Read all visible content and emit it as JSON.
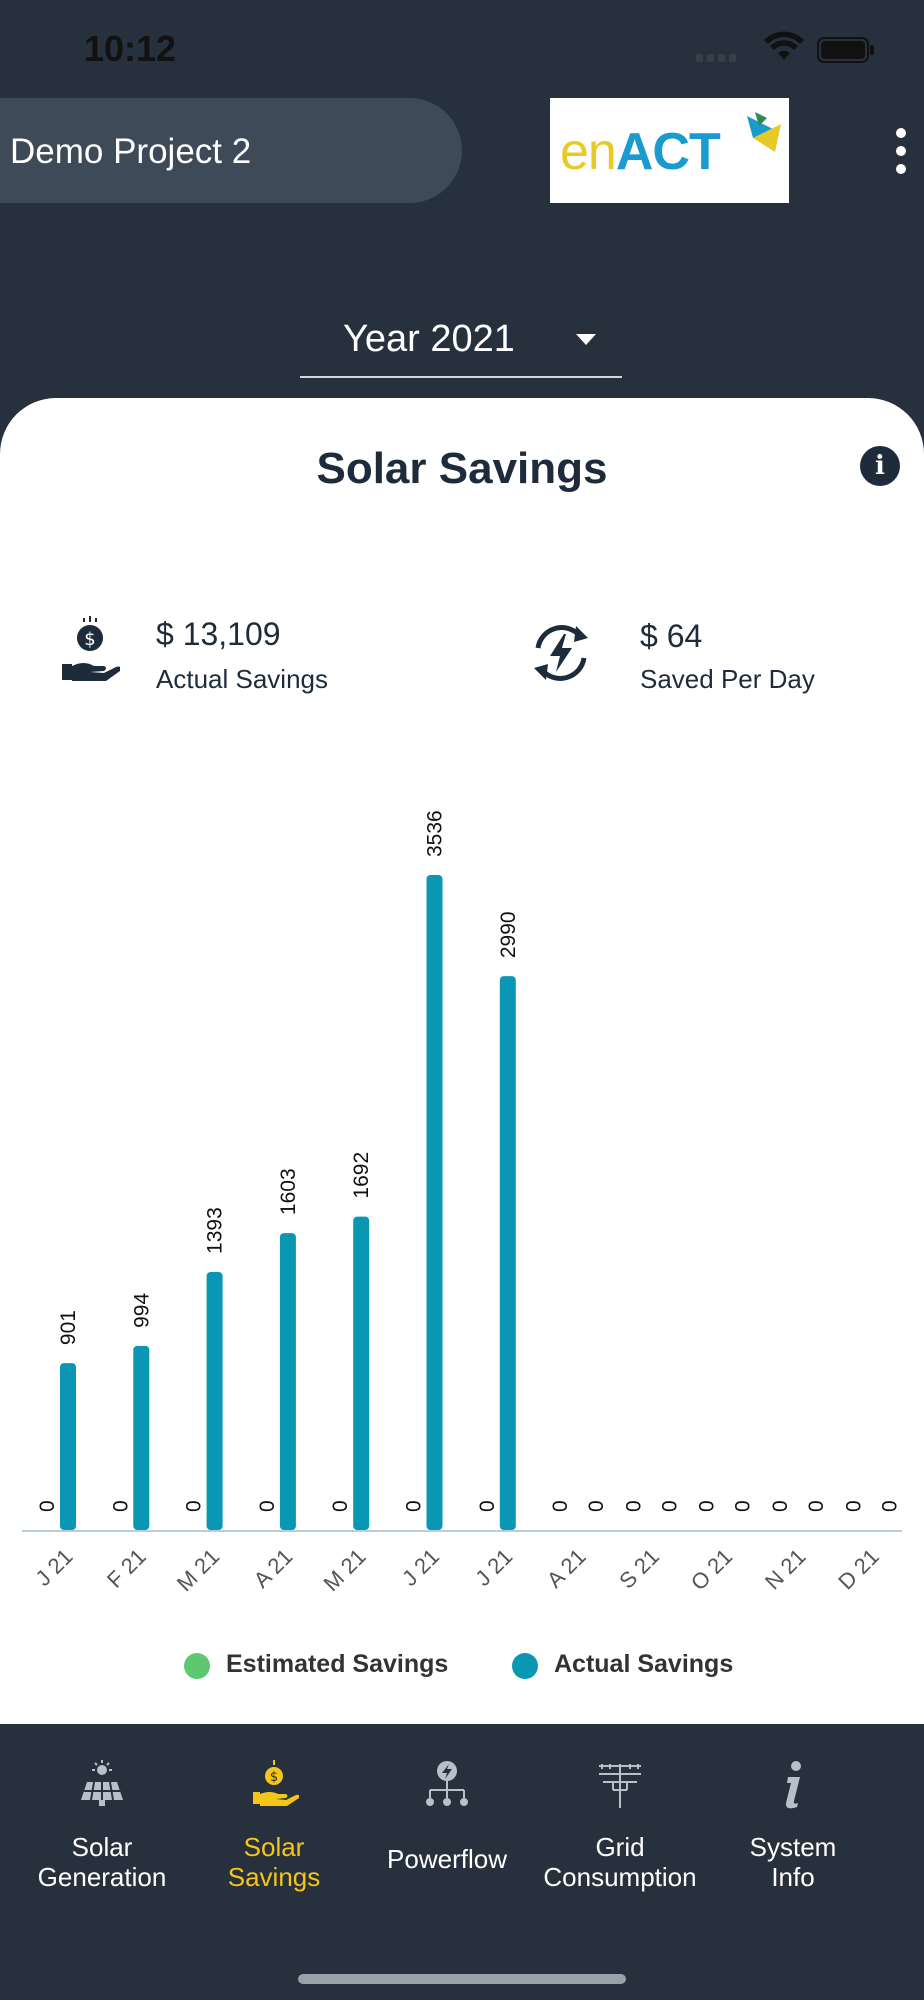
{
  "status_bar": {
    "time": "10:12"
  },
  "header": {
    "project_name": "Demo Project 2",
    "logo_text_en": "en",
    "logo_text_act": "ACT"
  },
  "year_selector": {
    "value": "Year 2021"
  },
  "card": {
    "title": "Solar Savings",
    "info_glyph": "i",
    "actual_savings": {
      "value": "$ 13,109",
      "label": "Actual Savings"
    },
    "saved_per_day": {
      "value": "$ 64",
      "label": "Saved Per Day"
    }
  },
  "chart_data": {
    "type": "bar",
    "categories": [
      "J 21",
      "F 21",
      "M 21",
      "A 21",
      "M 21",
      "J 21",
      "J 21",
      "A 21",
      "S 21",
      "O 21",
      "N 21",
      "D 21"
    ],
    "series": [
      {
        "name": "Estimated Savings",
        "color": "#5dc870",
        "values": [
          0,
          0,
          0,
          0,
          0,
          0,
          0,
          0,
          0,
          0,
          0,
          0
        ]
      },
      {
        "name": "Actual Savings",
        "color": "#0a97b4",
        "values": [
          901,
          994,
          1393,
          1603,
          1692,
          3536,
          2990,
          0,
          0,
          0,
          0,
          0
        ]
      }
    ],
    "legend_position": "bottom",
    "grid": false
  },
  "tabs": [
    {
      "label_line1": "Solar",
      "label_line2": "Generation",
      "icon": "solar-panel-icon",
      "active": false
    },
    {
      "label_line1": "Solar",
      "label_line2": "Savings",
      "icon": "savings-hand-icon",
      "active": true
    },
    {
      "label_line1": "Powerflow",
      "label_line2": "",
      "icon": "powerflow-icon",
      "active": false
    },
    {
      "label_line1": "Grid",
      "label_line2": "Consumption",
      "icon": "grid-tower-icon",
      "active": false
    },
    {
      "label_line1": "System",
      "label_line2": "Info",
      "icon": "info-icon",
      "active": false
    }
  ],
  "colors": {
    "background": "#27313d",
    "card": "#ffffff",
    "accent": "#f5c518",
    "bar": "#0a97b4",
    "estimated": "#5dc870"
  }
}
